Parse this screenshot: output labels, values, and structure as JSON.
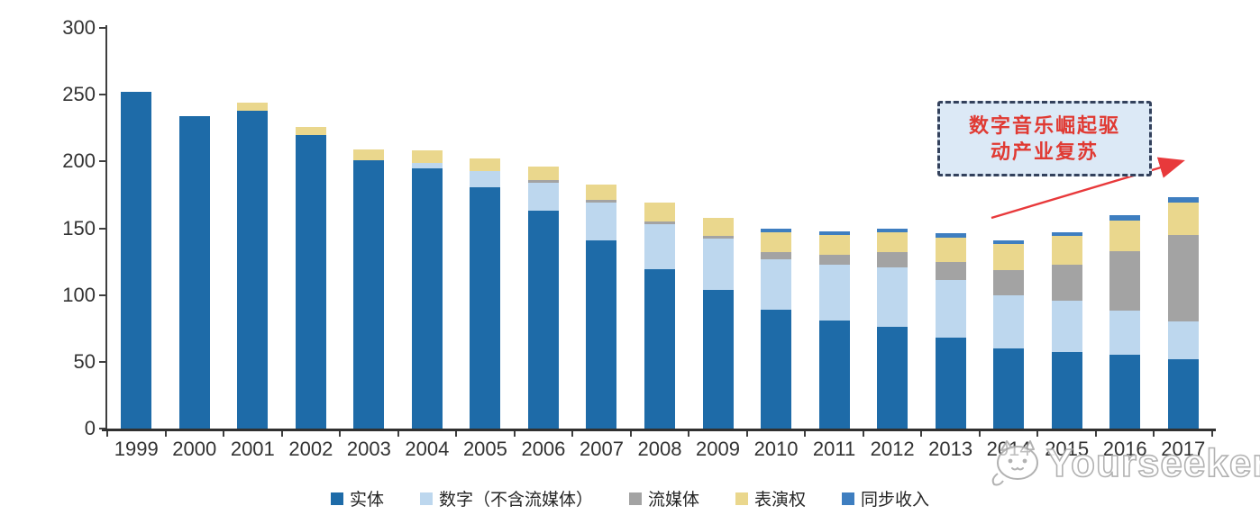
{
  "chart_data": {
    "type": "bar",
    "stacked": true,
    "title": "",
    "xlabel": "",
    "ylabel": "",
    "ylim": [
      0,
      300
    ],
    "yticks": [
      0,
      50,
      100,
      150,
      200,
      250,
      300
    ],
    "grid": false,
    "legend_position": "bottom",
    "categories": [
      "1999",
      "2000",
      "2001",
      "2002",
      "2003",
      "2004",
      "2005",
      "2006",
      "2007",
      "2008",
      "2009",
      "2010",
      "2011",
      "2012",
      "2013",
      "2014",
      "2015",
      "2016",
      "2017"
    ],
    "series": [
      {
        "name": "实体",
        "color": "#1E6BA8",
        "values": [
          252,
          234,
          238,
          220,
          201,
          195,
          181,
          163,
          141,
          119,
          104,
          89,
          81,
          76,
          68,
          60,
          57,
          55,
          52
        ]
      },
      {
        "name": "数字（不含流媒体）",
        "color": "#BDD7EE",
        "values": [
          0,
          0,
          0,
          0,
          0,
          4,
          12,
          21,
          28,
          34,
          38,
          38,
          42,
          45,
          43,
          40,
          39,
          33,
          28
        ]
      },
      {
        "name": "流媒体",
        "color": "#A3A3A3",
        "values": [
          0,
          0,
          0,
          0,
          0,
          0,
          0,
          2,
          2,
          2,
          2,
          5,
          7,
          11,
          14,
          19,
          27,
          45,
          65
        ]
      },
      {
        "name": "表演权",
        "color": "#EAD78D",
        "values": [
          0,
          0,
          6,
          6,
          8,
          9,
          9,
          10,
          12,
          14,
          14,
          15,
          15,
          15,
          18,
          19,
          21,
          23,
          24
        ]
      },
      {
        "name": "同步收入",
        "color": "#3E7EC0",
        "values": [
          0,
          0,
          0,
          0,
          0,
          0,
          0,
          0,
          0,
          0,
          0,
          3,
          3,
          3,
          3,
          3,
          3,
          4,
          4
        ]
      }
    ]
  },
  "annotation": {
    "line1": "数字音乐崛起驱",
    "line2": "动产业复苏",
    "text_color": "#E03A33",
    "box_fill": "#DCE9F6",
    "border_color": "#33415C",
    "arrow_color": "#E8393B"
  },
  "watermark": {
    "text": "Yourseeker",
    "logo": "cat-logo-icon",
    "color": "#ACACAC"
  },
  "axis": {
    "line_color": "#3f3f3f",
    "label_color": "#333333"
  }
}
